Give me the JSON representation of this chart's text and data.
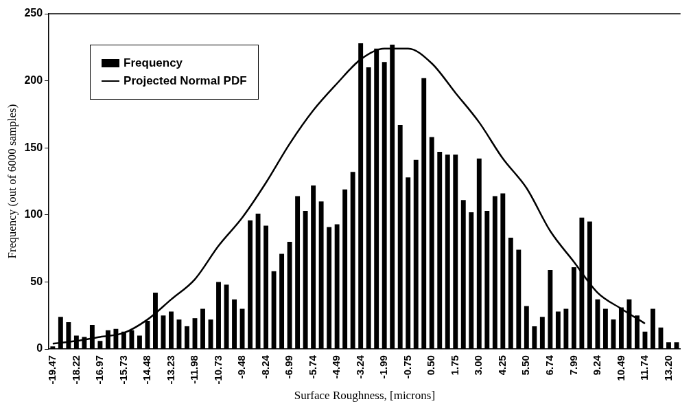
{
  "chart_data": {
    "type": "bar",
    "xlabel": "Surface Roughness, [microns]",
    "ylabel": "Frequency (out of 6000 samples)",
    "categories": [
      "-19.47",
      null,
      null,
      "-18.22",
      null,
      null,
      "-16.97",
      null,
      null,
      "-15.73",
      null,
      null,
      "-14.48",
      null,
      null,
      "-13.23",
      null,
      null,
      "-11.98",
      null,
      null,
      "-10.73",
      null,
      null,
      "-9.48",
      null,
      null,
      "-8.24",
      null,
      null,
      "-6.99",
      null,
      null,
      "-5.74",
      null,
      null,
      "-4.49",
      null,
      null,
      "-3.24",
      null,
      null,
      "-1.99",
      null,
      null,
      "-0.75",
      null,
      null,
      "0.50",
      null,
      null,
      "1.75",
      null,
      null,
      "3.00",
      null,
      null,
      "4.25",
      null,
      null,
      "5.50",
      null,
      null,
      "6.74",
      null,
      null,
      "7.99",
      null,
      null,
      "9.24",
      null,
      null,
      "10.49",
      null,
      null,
      "11.74",
      null,
      null,
      "13.20",
      null
    ],
    "series": [
      {
        "name": "Frequency",
        "type": "bar",
        "color": "#000000",
        "values": [
          2,
          24,
          20,
          10,
          9,
          18,
          6,
          14,
          15,
          13,
          14,
          10,
          21,
          42,
          25,
          28,
          22,
          17,
          23,
          30,
          22,
          50,
          48,
          37,
          30,
          96,
          101,
          92,
          58,
          71,
          80,
          114,
          103,
          122,
          110,
          91,
          93,
          119,
          132,
          228,
          210,
          224,
          214,
          227,
          167,
          128,
          141,
          202,
          158,
          147,
          145,
          145,
          111,
          102,
          142,
          103,
          114,
          116,
          83,
          74,
          32,
          17,
          24,
          59,
          28,
          30,
          61,
          98,
          95,
          37,
          30,
          22,
          31,
          37,
          25,
          13,
          30,
          16,
          5,
          5
        ]
      },
      {
        "name": "Projected Normal PDF",
        "type": "line",
        "color": "#000000",
        "values": [
          4,
          null,
          null,
          6,
          null,
          null,
          9,
          null,
          null,
          12,
          null,
          null,
          22,
          null,
          null,
          37,
          null,
          null,
          52,
          null,
          null,
          77,
          null,
          null,
          98,
          null,
          null,
          124,
          null,
          null,
          153,
          null,
          null,
          178,
          null,
          null,
          198,
          null,
          null,
          216,
          null,
          null,
          224,
          null,
          null,
          224,
          null,
          null,
          213,
          null,
          null,
          191,
          null,
          null,
          169,
          null,
          null,
          142,
          null,
          null,
          120,
          null,
          null,
          88,
          null,
          null,
          65,
          null,
          null,
          42,
          null,
          null,
          30,
          null,
          null,
          19,
          null,
          null,
          null,
          null
        ]
      }
    ],
    "ylim": [
      0,
      250
    ],
    "yticks": [
      0,
      50,
      100,
      150,
      200,
      250
    ],
    "grid": false,
    "legend": "top left",
    "marker": "none",
    "line_style": "solid"
  }
}
